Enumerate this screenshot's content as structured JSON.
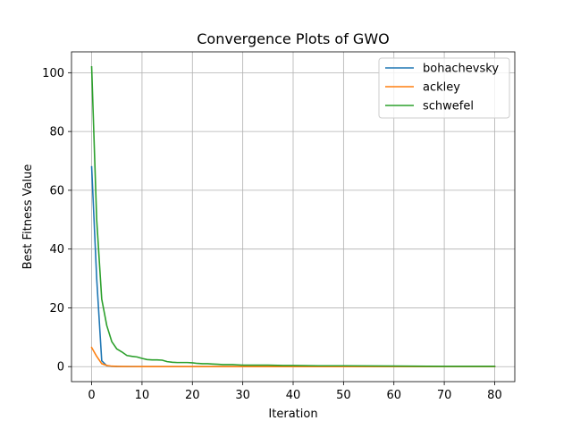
{
  "chart_data": {
    "type": "line",
    "title": "Convergence Plots of GWO",
    "xlabel": "Iteration",
    "ylabel": "Best Fitness Value",
    "xlim": [
      -4,
      84
    ],
    "ylim": [
      -5.1,
      107.1
    ],
    "xticks": [
      0,
      10,
      20,
      30,
      40,
      50,
      60,
      70,
      80
    ],
    "yticks": [
      0,
      20,
      40,
      60,
      80,
      100
    ],
    "grid": true,
    "legend_position": "top-right",
    "series": [
      {
        "name": "bohachevsky",
        "color": "#1f77b4",
        "x": [
          0,
          1,
          2,
          3,
          4,
          5,
          6,
          7,
          8,
          10,
          15,
          20,
          30,
          40,
          50,
          60,
          70,
          80
        ],
        "y": [
          68,
          30,
          2,
          0.3,
          0.1,
          0.05,
          0.03,
          0.02,
          0.01,
          0.01,
          0,
          0,
          0,
          0,
          0,
          0,
          0,
          0
        ]
      },
      {
        "name": "ackley",
        "color": "#ff7f0e",
        "x": [
          0,
          1,
          2,
          3,
          4,
          5,
          6,
          8,
          10,
          15,
          20,
          30,
          40,
          50,
          60,
          70,
          80
        ],
        "y": [
          6.5,
          3.5,
          1.0,
          0.4,
          0.15,
          0.08,
          0.05,
          0.03,
          0.02,
          0.01,
          0.01,
          0,
          0,
          0,
          0,
          0,
          0
        ]
      },
      {
        "name": "schwefel",
        "color": "#2ca02c",
        "x": [
          0,
          1,
          2,
          3,
          4,
          5,
          6,
          7,
          8,
          9,
          10,
          11,
          12,
          13,
          14,
          15,
          16,
          17,
          18,
          19,
          20,
          21,
          22,
          23,
          24,
          25,
          26,
          27,
          28,
          29,
          30,
          32,
          35,
          38,
          40,
          45,
          50,
          60,
          70,
          80
        ],
        "y": [
          102,
          50,
          23,
          14,
          8.5,
          6,
          5,
          3.8,
          3.5,
          3.3,
          2.8,
          2.4,
          2.3,
          2.3,
          2.2,
          1.7,
          1.5,
          1.4,
          1.4,
          1.4,
          1.3,
          1.1,
          1.0,
          1.0,
          0.9,
          0.8,
          0.7,
          0.7,
          0.7,
          0.6,
          0.5,
          0.5,
          0.5,
          0.4,
          0.4,
          0.3,
          0.3,
          0.2,
          0.1,
          0.1
        ]
      }
    ]
  }
}
